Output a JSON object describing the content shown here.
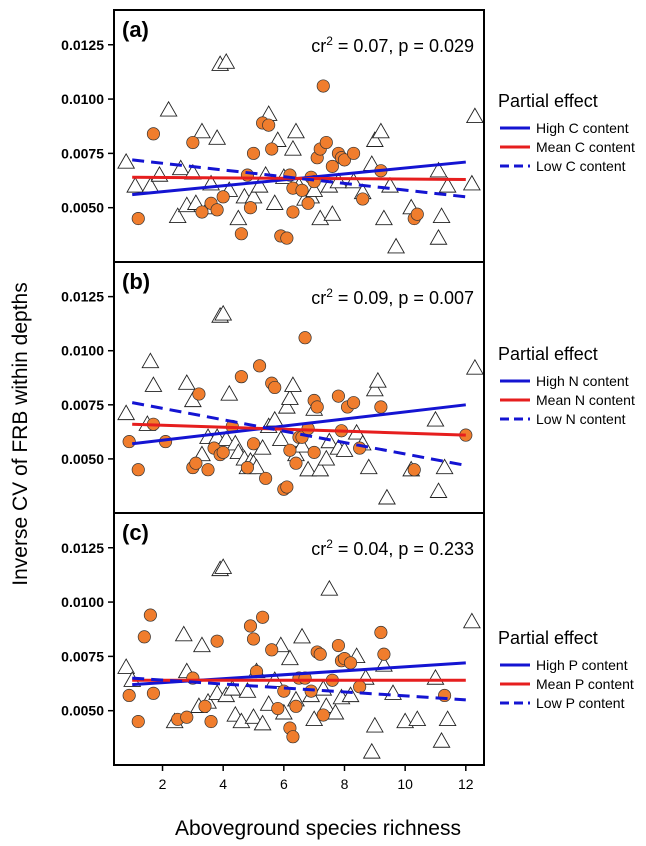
{
  "figure": {
    "ylabel": "Inverse CV of FRB within depths",
    "xlabel": "Aboveground species richness"
  },
  "colors": {
    "high": "#1414d2",
    "mean": "#e61e1e",
    "low": "#1414d2",
    "circle_fill": "#f07d2d",
    "circle_stroke": "#333333",
    "triangle_stroke": "#222222"
  },
  "chart_data": [
    {
      "type": "scatter",
      "panel": "(a)",
      "stat": {
        "cr2": "0.07",
        "p": "0.029"
      },
      "xlim": [
        0.4,
        12.6
      ],
      "ylim": [
        0.0025,
        0.0141
      ],
      "x_ticks": [
        2,
        4,
        6,
        8,
        10,
        12
      ],
      "y_ticks": [
        0.005,
        0.0075,
        0.01,
        0.0125
      ],
      "y_tick_labels": [
        "0.0050",
        "0.0075",
        "0.0100",
        "0.0125"
      ],
      "legend": {
        "title": "Partial effect",
        "entries": [
          {
            "label": "High C content",
            "style": "solid",
            "color": "#1414d2"
          },
          {
            "label": "Mean C content",
            "style": "solid",
            "color": "#e61e1e"
          },
          {
            "label": "Low C content",
            "style": "dashed",
            "color": "#1414d2"
          }
        ]
      },
      "lines": [
        {
          "id": "high",
          "x": [
            1.0,
            12.0
          ],
          "y": [
            0.0056,
            0.0071
          ]
        },
        {
          "id": "mean",
          "x": [
            1.0,
            12.0
          ],
          "y": [
            0.0064,
            0.0063
          ]
        },
        {
          "id": "low",
          "x": [
            1.0,
            12.0
          ],
          "y": [
            0.0072,
            0.0055
          ]
        }
      ],
      "circles": [
        [
          1.2,
          0.0045
        ],
        [
          1.7,
          0.0084
        ],
        [
          3.0,
          0.008
        ],
        [
          3.3,
          0.0048
        ],
        [
          3.6,
          0.0052
        ],
        [
          3.8,
          0.0049
        ],
        [
          4.0,
          0.0055
        ],
        [
          4.6,
          0.0038
        ],
        [
          4.8,
          0.0065
        ],
        [
          4.9,
          0.005
        ],
        [
          5.0,
          0.0075
        ],
        [
          5.3,
          0.0089
        ],
        [
          5.5,
          0.0088
        ],
        [
          5.6,
          0.0077
        ],
        [
          5.9,
          0.0037
        ],
        [
          6.1,
          0.0036
        ],
        [
          6.2,
          0.0065
        ],
        [
          6.3,
          0.0059
        ],
        [
          6.3,
          0.0048
        ],
        [
          6.6,
          0.0058
        ],
        [
          6.8,
          0.0052
        ],
        [
          6.9,
          0.0064
        ],
        [
          7.0,
          0.0062
        ],
        [
          7.1,
          0.0073
        ],
        [
          7.2,
          0.0077
        ],
        [
          7.3,
          0.0106
        ],
        [
          7.4,
          0.008
        ],
        [
          7.6,
          0.0069
        ],
        [
          7.8,
          0.0075
        ],
        [
          7.9,
          0.0073
        ],
        [
          8.0,
          0.0072
        ],
        [
          8.3,
          0.0075
        ],
        [
          8.6,
          0.0054
        ],
        [
          9.2,
          0.0067
        ],
        [
          10.3,
          0.0045
        ],
        [
          10.4,
          0.0047
        ]
      ],
      "triangles": [
        [
          0.8,
          0.0071
        ],
        [
          1.1,
          0.006
        ],
        [
          1.6,
          0.006
        ],
        [
          1.9,
          0.0065
        ],
        [
          2.2,
          0.0095
        ],
        [
          2.5,
          0.0046
        ],
        [
          2.6,
          0.0068
        ],
        [
          2.8,
          0.0051
        ],
        [
          3.0,
          0.0066
        ],
        [
          3.1,
          0.0052
        ],
        [
          3.3,
          0.0085
        ],
        [
          3.5,
          0.005
        ],
        [
          3.6,
          0.0061
        ],
        [
          3.8,
          0.0082
        ],
        [
          3.9,
          0.0116
        ],
        [
          4.1,
          0.0117
        ],
        [
          4.2,
          0.0058
        ],
        [
          4.5,
          0.0045
        ],
        [
          4.7,
          0.0055
        ],
        [
          5.0,
          0.0055
        ],
        [
          5.2,
          0.006
        ],
        [
          5.4,
          0.0065
        ],
        [
          5.5,
          0.0093
        ],
        [
          5.7,
          0.0052
        ],
        [
          5.8,
          0.0081
        ],
        [
          6.0,
          0.0064
        ],
        [
          6.3,
          0.0077
        ],
        [
          6.4,
          0.0085
        ],
        [
          6.5,
          0.006
        ],
        [
          6.7,
          0.0054
        ],
        [
          6.9,
          0.0055
        ],
        [
          7.0,
          0.0058
        ],
        [
          7.2,
          0.0045
        ],
        [
          7.5,
          0.006
        ],
        [
          7.6,
          0.0047
        ],
        [
          7.8,
          0.0062
        ],
        [
          8.3,
          0.0062
        ],
        [
          8.6,
          0.0057
        ],
        [
          8.9,
          0.007
        ],
        [
          9.0,
          0.0081
        ],
        [
          9.2,
          0.0085
        ],
        [
          9.3,
          0.0045
        ],
        [
          9.5,
          0.006
        ],
        [
          9.7,
          0.0032
        ],
        [
          10.2,
          0.005
        ],
        [
          11.1,
          0.0067
        ],
        [
          11.1,
          0.0036
        ],
        [
          11.2,
          0.0046
        ],
        [
          11.4,
          0.006
        ],
        [
          12.2,
          0.0061
        ],
        [
          12.3,
          0.0092
        ]
      ]
    },
    {
      "type": "scatter",
      "panel": "(b)",
      "stat": {
        "cr2": "0.09",
        "p": "0.007"
      },
      "xlim": [
        0.4,
        12.6
      ],
      "ylim": [
        0.0025,
        0.0141
      ],
      "x_ticks": [
        2,
        4,
        6,
        8,
        10,
        12
      ],
      "y_ticks": [
        0.005,
        0.0075,
        0.01,
        0.0125
      ],
      "y_tick_labels": [
        "0.0050",
        "0.0075",
        "0.0100",
        "0.0125"
      ],
      "legend": {
        "title": "Partial effect",
        "entries": [
          {
            "label": "High N content",
            "style": "solid",
            "color": "#1414d2"
          },
          {
            "label": "Mean N content",
            "style": "solid",
            "color": "#e61e1e"
          },
          {
            "label": "Low N content",
            "style": "dashed",
            "color": "#1414d2"
          }
        ]
      },
      "lines": [
        {
          "id": "high",
          "x": [
            1.0,
            12.0
          ],
          "y": [
            0.0057,
            0.0075
          ]
        },
        {
          "id": "mean",
          "x": [
            1.0,
            12.0
          ],
          "y": [
            0.0066,
            0.0061
          ]
        },
        {
          "id": "low",
          "x": [
            1.0,
            12.0
          ],
          "y": [
            0.0076,
            0.0047
          ]
        }
      ],
      "circles": [
        [
          0.9,
          0.0058
        ],
        [
          1.2,
          0.0045
        ],
        [
          1.7,
          0.0066
        ],
        [
          2.1,
          0.0058
        ],
        [
          3.0,
          0.0046
        ],
        [
          3.1,
          0.0048
        ],
        [
          3.2,
          0.008
        ],
        [
          3.5,
          0.0045
        ],
        [
          3.7,
          0.0055
        ],
        [
          3.9,
          0.0052
        ],
        [
          4.0,
          0.0053
        ],
        [
          4.3,
          0.0065
        ],
        [
          4.6,
          0.0088
        ],
        [
          4.8,
          0.0046
        ],
        [
          5.0,
          0.0057
        ],
        [
          5.2,
          0.0093
        ],
        [
          5.4,
          0.0041
        ],
        [
          5.6,
          0.0085
        ],
        [
          5.7,
          0.0083
        ],
        [
          6.0,
          0.0036
        ],
        [
          6.1,
          0.0037
        ],
        [
          6.2,
          0.0054
        ],
        [
          6.4,
          0.0048
        ],
        [
          6.5,
          0.006
        ],
        [
          6.6,
          0.006
        ],
        [
          6.7,
          0.0106
        ],
        [
          6.8,
          0.0064
        ],
        [
          7.0,
          0.0077
        ],
        [
          7.0,
          0.0053
        ],
        [
          7.1,
          0.0074
        ],
        [
          7.8,
          0.0079
        ],
        [
          7.9,
          0.0063
        ],
        [
          8.1,
          0.0074
        ],
        [
          8.3,
          0.0076
        ],
        [
          8.5,
          0.0055
        ],
        [
          9.2,
          0.0074
        ],
        [
          10.3,
          0.0045
        ],
        [
          12.0,
          0.0061
        ]
      ],
      "triangles": [
        [
          0.8,
          0.0071
        ],
        [
          1.5,
          0.0066
        ],
        [
          1.6,
          0.0095
        ],
        [
          1.7,
          0.0084
        ],
        [
          2.8,
          0.0085
        ],
        [
          3.0,
          0.0077
        ],
        [
          3.3,
          0.0052
        ],
        [
          3.5,
          0.006
        ],
        [
          3.8,
          0.006
        ],
        [
          3.9,
          0.0116
        ],
        [
          4.0,
          0.0117
        ],
        [
          4.1,
          0.0059
        ],
        [
          4.2,
          0.008
        ],
        [
          4.4,
          0.0057
        ],
        [
          4.5,
          0.0053
        ],
        [
          4.7,
          0.005
        ],
        [
          4.8,
          0.0046
        ],
        [
          4.9,
          0.0049
        ],
        [
          5.0,
          0.0048
        ],
        [
          5.1,
          0.0046
        ],
        [
          5.3,
          0.0055
        ],
        [
          5.5,
          0.0065
        ],
        [
          5.7,
          0.0068
        ],
        [
          5.9,
          0.0059
        ],
        [
          6.1,
          0.0074
        ],
        [
          6.2,
          0.0078
        ],
        [
          6.3,
          0.0084
        ],
        [
          6.4,
          0.0052
        ],
        [
          6.6,
          0.0056
        ],
        [
          6.8,
          0.0045
        ],
        [
          7.0,
          0.0073
        ],
        [
          7.2,
          0.0045
        ],
        [
          7.4,
          0.005
        ],
        [
          7.5,
          0.0058
        ],
        [
          7.8,
          0.0055
        ],
        [
          8.0,
          0.0054
        ],
        [
          8.4,
          0.0062
        ],
        [
          8.6,
          0.0057
        ],
        [
          8.8,
          0.0046
        ],
        [
          9.0,
          0.0082
        ],
        [
          9.1,
          0.0086
        ],
        [
          9.4,
          0.0032
        ],
        [
          10.2,
          0.0045
        ],
        [
          11.0,
          0.0068
        ],
        [
          11.1,
          0.0035
        ],
        [
          11.3,
          0.0046
        ],
        [
          12.3,
          0.0092
        ]
      ]
    },
    {
      "type": "scatter",
      "panel": "(c)",
      "stat": {
        "cr2": "0.04",
        "p": "0.233"
      },
      "xlim": [
        0.4,
        12.6
      ],
      "ylim": [
        0.0025,
        0.0141
      ],
      "x_ticks": [
        2,
        4,
        6,
        8,
        10,
        12
      ],
      "y_ticks": [
        0.005,
        0.0075,
        0.01,
        0.0125
      ],
      "y_tick_labels": [
        "0.0050",
        "0.0075",
        "0.0100",
        "0.0125"
      ],
      "x_tick_labels": [
        "2",
        "4",
        "6",
        "8",
        "10",
        "12"
      ],
      "legend": {
        "title": "Partial effect",
        "entries": [
          {
            "label": "High P content",
            "style": "solid",
            "color": "#1414d2"
          },
          {
            "label": "Mean P content",
            "style": "solid",
            "color": "#e61e1e"
          },
          {
            "label": "Low P content",
            "style": "dashed",
            "color": "#1414d2"
          }
        ]
      },
      "lines": [
        {
          "id": "high",
          "x": [
            1.0,
            12.0
          ],
          "y": [
            0.0062,
            0.0072
          ]
        },
        {
          "id": "mean",
          "x": [
            1.0,
            12.0
          ],
          "y": [
            0.0064,
            0.0064
          ]
        },
        {
          "id": "low",
          "x": [
            1.0,
            12.0
          ],
          "y": [
            0.0065,
            0.0055
          ]
        }
      ],
      "circles": [
        [
          0.9,
          0.0057
        ],
        [
          1.2,
          0.0045
        ],
        [
          1.4,
          0.0084
        ],
        [
          1.6,
          0.0094
        ],
        [
          1.7,
          0.0058
        ],
        [
          2.5,
          0.0046
        ],
        [
          2.8,
          0.0047
        ],
        [
          3.0,
          0.0065
        ],
        [
          3.4,
          0.0052
        ],
        [
          3.6,
          0.0045
        ],
        [
          3.8,
          0.0082
        ],
        [
          4.9,
          0.0089
        ],
        [
          5.0,
          0.0083
        ],
        [
          5.1,
          0.0068
        ],
        [
          5.3,
          0.0093
        ],
        [
          5.6,
          0.0078
        ],
        [
          5.8,
          0.0051
        ],
        [
          6.0,
          0.0059
        ],
        [
          6.2,
          0.0042
        ],
        [
          6.3,
          0.0038
        ],
        [
          6.4,
          0.0052
        ],
        [
          6.5,
          0.0065
        ],
        [
          6.7,
          0.0065
        ],
        [
          6.9,
          0.0059
        ],
        [
          7.1,
          0.0077
        ],
        [
          7.2,
          0.0076
        ],
        [
          7.3,
          0.0048
        ],
        [
          7.6,
          0.0064
        ],
        [
          7.8,
          0.008
        ],
        [
          7.9,
          0.0073
        ],
        [
          8.0,
          0.0074
        ],
        [
          8.2,
          0.0072
        ],
        [
          8.5,
          0.0061
        ],
        [
          9.2,
          0.0086
        ],
        [
          9.3,
          0.0076
        ],
        [
          11.3,
          0.0057
        ]
      ],
      "triangles": [
        [
          0.8,
          0.007
        ],
        [
          1.0,
          0.0064
        ],
        [
          2.4,
          0.0045
        ],
        [
          2.7,
          0.0085
        ],
        [
          2.8,
          0.0068
        ],
        [
          3.2,
          0.0052
        ],
        [
          3.3,
          0.008
        ],
        [
          3.5,
          0.0054
        ],
        [
          3.8,
          0.0058
        ],
        [
          3.9,
          0.0115
        ],
        [
          4.0,
          0.0116
        ],
        [
          4.1,
          0.0057
        ],
        [
          4.3,
          0.006
        ],
        [
          4.4,
          0.0048
        ],
        [
          4.6,
          0.0045
        ],
        [
          4.8,
          0.0059
        ],
        [
          5.0,
          0.0047
        ],
        [
          5.1,
          0.0068
        ],
        [
          5.3,
          0.0044
        ],
        [
          5.5,
          0.0053
        ],
        [
          5.7,
          0.0064
        ],
        [
          5.9,
          0.008
        ],
        [
          6.0,
          0.0049
        ],
        [
          6.2,
          0.0074
        ],
        [
          6.4,
          0.0055
        ],
        [
          6.6,
          0.0084
        ],
        [
          6.9,
          0.0057
        ],
        [
          7.0,
          0.0046
        ],
        [
          7.3,
          0.006
        ],
        [
          7.4,
          0.0052
        ],
        [
          7.5,
          0.0106
        ],
        [
          7.7,
          0.0049
        ],
        [
          7.9,
          0.0056
        ],
        [
          8.2,
          0.0057
        ],
        [
          8.4,
          0.0075
        ],
        [
          8.7,
          0.0065
        ],
        [
          8.9,
          0.0031
        ],
        [
          9.0,
          0.0043
        ],
        [
          9.3,
          0.0071
        ],
        [
          9.6,
          0.0058
        ],
        [
          10.0,
          0.0045
        ],
        [
          10.4,
          0.0046
        ],
        [
          11.0,
          0.0065
        ],
        [
          11.2,
          0.0036
        ],
        [
          11.4,
          0.0046
        ],
        [
          12.2,
          0.0091
        ]
      ]
    }
  ]
}
